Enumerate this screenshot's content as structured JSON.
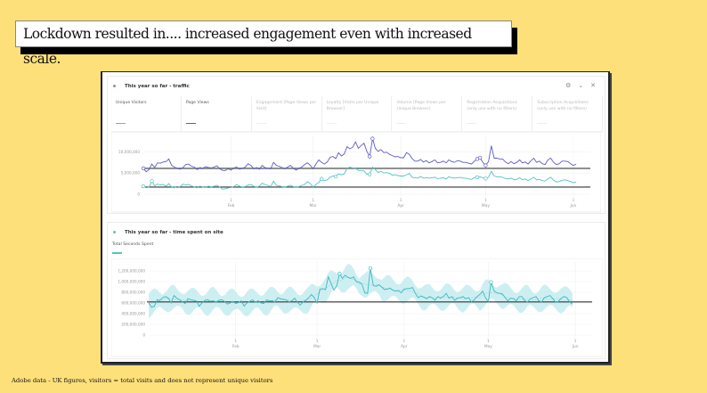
{
  "headline": "Lockdown resulted in.... increased engagement even with increased scale.",
  "footnote": "Adobe data - UK figures, visitors = total visits and does not represent unique visitors",
  "colors": {
    "background": "#fde07a",
    "unique_visitors": "#4fc4c4",
    "page_views": "#5b5bc9",
    "band": "#bde9ee",
    "baseline": "#333333"
  },
  "panel1": {
    "title": "This year so far - traffic",
    "controls": {
      "settings_icon": "gear-icon",
      "collapse_icon": "chevron-down-icon",
      "close_icon": "close-icon",
      "settings": "⚙",
      "collapse": "⌄",
      "close": "✕"
    },
    "metrics": [
      {
        "label": "Unique Visitors",
        "active": true,
        "color": "#4fc4c4"
      },
      {
        "label": "Page Views",
        "active": true,
        "color": "#5b5bc9"
      },
      {
        "label": "Engagement [Page Views per Visit]",
        "active": false
      },
      {
        "label": "Loyalty [Visits per Unique Browser]",
        "active": false
      },
      {
        "label": "Volume [Page Views per Unique Browser]",
        "active": false
      },
      {
        "label": "Registration Acquisitions (only use with no filters)",
        "active": false
      },
      {
        "label": "Subscription Acquisitions (only use with no filters)",
        "active": false
      }
    ]
  },
  "panel2": {
    "title": "This year so far - time spent on site",
    "metric": "Total Seconds Spent"
  },
  "chart_data": [
    {
      "type": "line",
      "title": "This year so far - traffic",
      "ylim": [
        0,
        13000000
      ],
      "yticks": [
        {
          "value": 0,
          "label": "0"
        },
        {
          "value": 5000000,
          "label": "5,000,000"
        },
        {
          "value": 10000000,
          "label": "10,000,000"
        }
      ],
      "xticks": [
        {
          "day": 31,
          "label": "1",
          "sublabel": "Feb"
        },
        {
          "day": 60,
          "label": "1",
          "sublabel": "Mar"
        },
        {
          "day": 91,
          "label": "1",
          "sublabel": "Apr"
        },
        {
          "day": 121,
          "label": "1",
          "sublabel": "May"
        },
        {
          "day": 152,
          "label": "1",
          "sublabel": "Jun"
        }
      ],
      "xrange": [
        0,
        158
      ],
      "grid": true,
      "series": [
        {
          "name": "Page Views",
          "color": "#5b5bc9",
          "baseline": 6100000,
          "values": [
            6.1,
            5.3,
            5.8,
            7.1,
            6.3,
            7.4,
            7.3,
            7.6,
            7.7,
            8.3,
            6.8,
            6.4,
            6.1,
            5.9,
            6.3,
            7.0,
            7.1,
            6.6,
            6.4,
            5.8,
            6.3,
            6.1,
            6.5,
            6.3,
            6.2,
            6.4,
            6.7,
            6.0,
            5.6,
            5.6,
            6.0,
            5.7,
            6.2,
            6.4,
            5.9,
            6.1,
            6.4,
            7.2,
            6.8,
            6.0,
            6.3,
            5.9,
            6.8,
            6.3,
            6.1,
            6.0,
            7.5,
            6.8,
            6.6,
            6.3,
            6.0,
            6.4,
            6.8,
            6.1,
            5.7,
            6.1,
            6.4,
            7.0,
            7.4,
            6.8,
            6.0,
            7.1,
            8.1,
            7.5,
            7.1,
            7.6,
            8.7,
            8.9,
            8.4,
            9.8,
            9.0,
            9.5,
            11.2,
            10.7,
            11.1,
            12.3,
            10.8,
            11.5,
            12.0,
            10.1,
            8.9,
            13.1,
            10.8,
            10.1,
            10.5,
            9.8,
            9.9,
            9.4,
            9.1,
            8.8,
            8.9,
            8.6,
            8.6,
            9.8,
            9.4,
            8.4,
            7.8,
            7.8,
            8.2,
            7.6,
            7.9,
            7.4,
            7.7,
            8.1,
            7.4,
            7.5,
            7.8,
            7.4,
            8.1,
            7.7,
            7.5,
            7.9,
            7.8,
            7.5,
            7.5,
            7.3,
            7.1,
            7.8,
            8.3,
            8.6,
            7.5,
            6.8,
            7.7,
            11.4,
            8.5,
            8.5,
            8.3,
            8.3,
            7.6,
            7.2,
            7.7,
            7.2,
            7.5,
            8.1,
            7.4,
            7.6,
            7.1,
            7.9,
            8.5,
            7.5,
            7.8,
            7.2,
            7.0,
            8.1,
            8.5,
            7.5,
            7.0,
            7.2,
            7.8,
            7.8,
            7.7,
            7.2,
            6.8,
            7.1
          ],
          "markers": [
            0,
            80,
            81,
            118,
            119,
            121
          ]
        },
        {
          "name": "Unique Visitors",
          "color": "#4fc4c4",
          "baseline": 1700000,
          "values": [
            1.9,
            1.5,
            1.7,
            3.1,
            2.0,
            2.4,
            2.2,
            2.3,
            1.9,
            2.5,
            1.7,
            1.8,
            1.5,
            1.8,
            2.4,
            2.2,
            2.3,
            2.0,
            1.7,
            1.5,
            1.9,
            1.7,
            1.6,
            1.9,
            1.7,
            1.9,
            2.1,
            1.7,
            1.2,
            1.3,
            1.5,
            1.6,
            1.8,
            2.3,
            1.9,
            1.7,
            1.8,
            2.2,
            2.3,
            1.9,
            1.6,
            1.9,
            2.6,
            2.3,
            2.1,
            1.8,
            3.1,
            2.1,
            2.0,
            1.8,
            1.6,
            1.9,
            2.1,
            1.8,
            1.6,
            1.8,
            2.1,
            2.3,
            3.0,
            2.5,
            1.7,
            2.3,
            2.8,
            3.6,
            3.2,
            3.4,
            4.0,
            4.3,
            4.2,
            4.8,
            4.6,
            4.8,
            6.1,
            6.4,
            6.2,
            6.1,
            5.6,
            5.6,
            5.5,
            4.7,
            4.7,
            6.4,
            5.8,
            5.1,
            5.4,
            5.0,
            5.1,
            4.9,
            4.5,
            4.6,
            4.4,
            4.3,
            4.3,
            4.6,
            4.9,
            4.0,
            3.9,
            3.8,
            4.2,
            3.8,
            3.9,
            3.8,
            3.9,
            4.0,
            3.7,
            3.8,
            3.9,
            3.6,
            4.1,
            3.9,
            3.8,
            3.9,
            4.0,
            3.8,
            3.8,
            3.6,
            3.5,
            3.9,
            4.0,
            4.1,
            3.9,
            3.7,
            4.0,
            5.4,
            4.3,
            4.1,
            4.1,
            4.0,
            3.7,
            3.6,
            3.8,
            3.4,
            3.5,
            3.9,
            3.4,
            3.6,
            3.2,
            3.6,
            4.0,
            3.4,
            3.5,
            3.2,
            3.1,
            3.6,
            4.0,
            3.3,
            2.9,
            3.0,
            3.3,
            3.4,
            3.2,
            3.0,
            2.7,
            2.9
          ],
          "markers": [
            0,
            3,
            63,
            68,
            80,
            118,
            121
          ]
        }
      ]
    },
    {
      "type": "line",
      "title": "This year so far - time spent on site",
      "ylim": [
        0,
        1300000000
      ],
      "yticks": [
        {
          "value": 0,
          "label": "0"
        },
        {
          "value": 200000000,
          "label": "200,000,000"
        },
        {
          "value": 400000000,
          "label": "400,000,000"
        },
        {
          "value": 600000000,
          "label": "600,000,000"
        },
        {
          "value": 800000000,
          "label": "800,000,000"
        },
        {
          "value": 1000000000,
          "label": "1,000,000,000"
        },
        {
          "value": 1200000000,
          "label": "1,200,000,000"
        }
      ],
      "xticks": [
        {
          "day": 31,
          "label": "1",
          "sublabel": "Feb"
        },
        {
          "day": 60,
          "label": "1",
          "sublabel": "Mar"
        },
        {
          "day": 91,
          "label": "1",
          "sublabel": "Apr"
        },
        {
          "day": 121,
          "label": "1",
          "sublabel": "May"
        },
        {
          "day": 152,
          "label": "1",
          "sublabel": "Jun"
        }
      ],
      "xrange": [
        0,
        158
      ],
      "grid": true,
      "series": [
        {
          "name": "Total Seconds Spent",
          "color": "#3db7c0",
          "baseline": 620000000,
          "band_width": 230000000,
          "values": [
            600,
            520,
            540,
            660,
            650,
            700,
            720,
            690,
            600,
            740,
            690,
            660,
            620,
            590,
            680,
            660,
            650,
            640,
            540,
            600,
            650,
            660,
            630,
            640,
            610,
            650,
            660,
            630,
            580,
            600,
            630,
            590,
            610,
            640,
            540,
            600,
            630,
            660,
            610,
            640,
            600,
            590,
            660,
            640,
            640,
            620,
            700,
            680,
            670,
            660,
            620,
            640,
            690,
            610,
            560,
            620,
            650,
            700,
            760,
            700,
            600,
            860,
            870,
            850,
            1090,
            960,
            840,
            920,
            1150,
            1060,
            1120,
            1080,
            1060,
            1090,
            1000,
            990,
            950,
            790,
            780,
            1250,
            930,
            910,
            940,
            900,
            850,
            860,
            880,
            840,
            820,
            830,
            790,
            860,
            870,
            870,
            890,
            780,
            700,
            730,
            710,
            680,
            720,
            700,
            650,
            720,
            690,
            720,
            780,
            690,
            720,
            650,
            690,
            700,
            720,
            680,
            700,
            620,
            660,
            720,
            760,
            820,
            700,
            620,
            990,
            830,
            790,
            780,
            770,
            700,
            640,
            690,
            680,
            640,
            720,
            720,
            640,
            620,
            680,
            700,
            720,
            640,
            620,
            700,
            720,
            740,
            680,
            610,
            630,
            690,
            720,
            700,
            620,
            580
          ],
          "markers": [
            68,
            79,
            122
          ]
        }
      ]
    }
  ]
}
